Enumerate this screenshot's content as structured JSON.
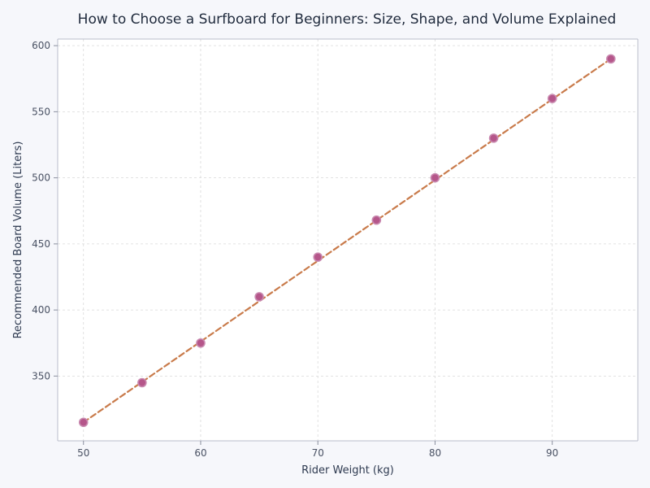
{
  "chart_data": {
    "type": "scatter",
    "title": "How to Choose a Surfboard for Beginners: Size, Shape, and Volume Explained",
    "xlabel": "Rider Weight (kg)",
    "ylabel": "Recommended Board Volume (Liters)",
    "xlim": [
      47.8,
      97.3
    ],
    "ylim": [
      301,
      605
    ],
    "xticks": [
      50,
      60,
      70,
      80,
      90
    ],
    "yticks": [
      350,
      400,
      450,
      500,
      550,
      600
    ],
    "grid": true,
    "series": [
      {
        "points": [
          {
            "x": 50,
            "y": 315
          },
          {
            "x": 55,
            "y": 345
          },
          {
            "x": 60,
            "y": 375
          },
          {
            "x": 65,
            "y": 410
          },
          {
            "x": 70,
            "y": 440
          },
          {
            "x": 75,
            "y": 468
          },
          {
            "x": 80,
            "y": 500
          },
          {
            "x": 85,
            "y": 530
          },
          {
            "x": 90,
            "y": 560
          },
          {
            "x": 95,
            "y": 590
          }
        ],
        "marker_color": "#b5568a",
        "marker_edge": "#c98ab0"
      }
    ],
    "trendline": {
      "style": "dashed",
      "color": "#c97b4b",
      "from": {
        "x": 50,
        "y": 315
      },
      "to": {
        "x": 95,
        "y": 590
      }
    }
  }
}
